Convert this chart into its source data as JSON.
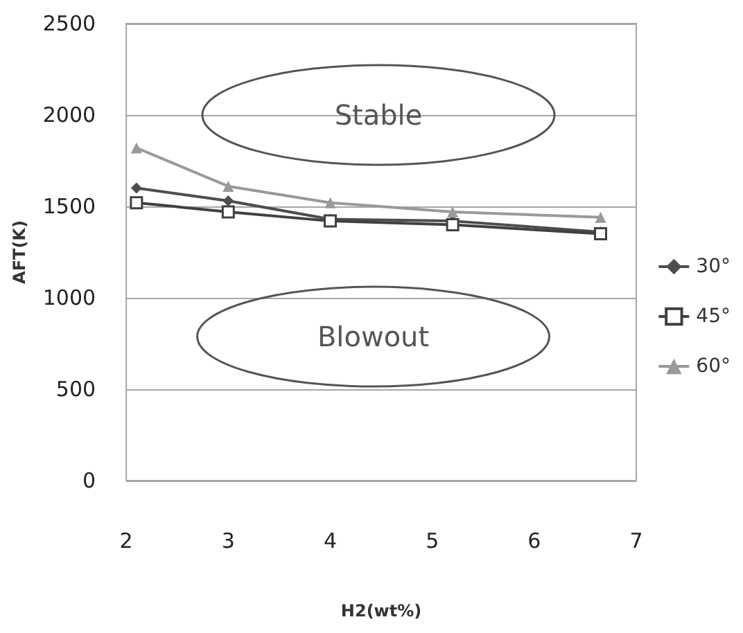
{
  "chart_data": {
    "type": "line",
    "xlabel": "H2(wt%)",
    "ylabel": "AFT(K)",
    "x": [
      2.1,
      3,
      4,
      5.2,
      6.65
    ],
    "series": [
      {
        "name": "30°",
        "color": "#4d4d4d",
        "marker": "diamond",
        "values": [
          1600,
          1530,
          1430,
          1420,
          1360
        ]
      },
      {
        "name": "45°",
        "color": "#404040",
        "marker": "square",
        "values": [
          1520,
          1470,
          1420,
          1400,
          1350
        ]
      },
      {
        "name": "60°",
        "color": "#999999",
        "marker": "triangle",
        "values": [
          1820,
          1610,
          1520,
          1470,
          1440
        ]
      }
    ],
    "xlim": [
      2,
      7
    ],
    "xticks": [
      2,
      3,
      4,
      5,
      6,
      7
    ],
    "ylim": [
      0,
      2500
    ],
    "yticks": [
      0,
      500,
      1000,
      1500,
      2000,
      2500
    ],
    "grid": "y",
    "legend": "right",
    "annotations": [
      "Stable",
      "Blowout"
    ]
  }
}
